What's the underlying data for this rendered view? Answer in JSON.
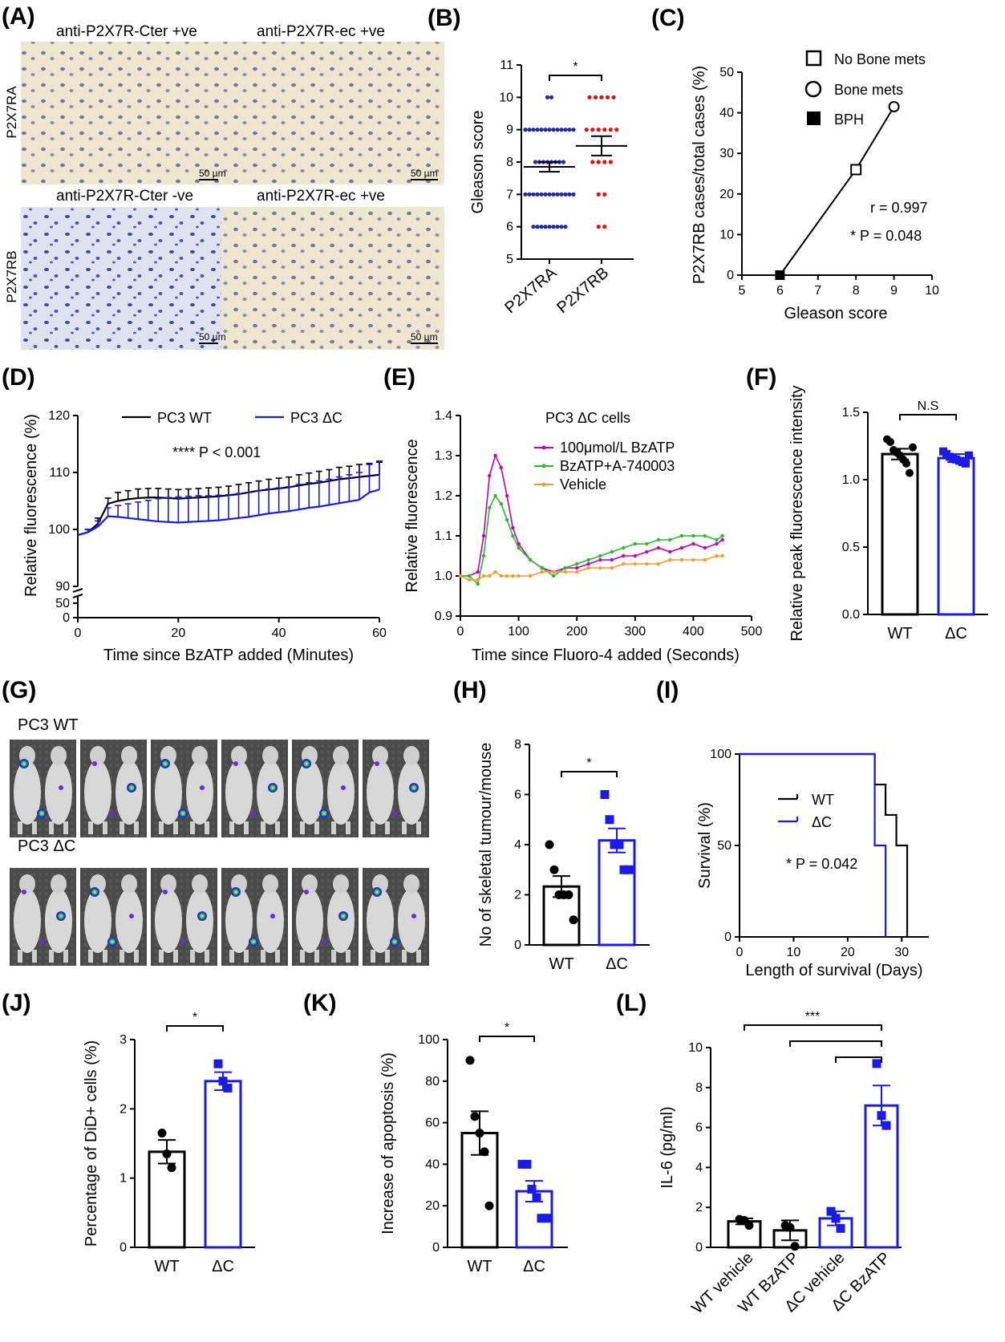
{
  "colors": {
    "black": "#000000",
    "blue": "#1a1aeb",
    "red": "#e01010",
    "navy": "#1f2a9e",
    "magenta": "#c000c0",
    "green": "#2db82d",
    "orange": "#f29b30"
  },
  "panels": {
    "A": {
      "tag": "(A)",
      "row_labels": [
        "P2X7RA",
        "P2X7RB"
      ],
      "tiles": [
        {
          "label": "anti-P2X7R-Cter +ve",
          "scale": "50 µm"
        },
        {
          "label": "anti-P2X7R-ec  +ve",
          "scale": "50 µm"
        },
        {
          "label": "anti-P2X7R-Cter  -ve",
          "scale": "50 µm"
        },
        {
          "label": "anti-P2X7R-ec +ve",
          "scale": "50 µm"
        }
      ]
    },
    "G": {
      "tag": "(G)",
      "group_labels": [
        "PC3 WT",
        "PC3 ΔC"
      ]
    }
  },
  "chart_data": [
    {
      "id": "B",
      "tag": "(B)",
      "type": "scatter",
      "categories": [
        "P2X7RA",
        "P2X7RB"
      ],
      "ylabel": "Gleason score",
      "ylim": [
        5,
        11
      ],
      "yticks": [
        5,
        6,
        7,
        8,
        9,
        10,
        11
      ],
      "series": [
        {
          "category": "P2X7RA",
          "mean": 7.85,
          "sem": 0.15,
          "counts": {
            "6": 9,
            "7": 13,
            "8": 8,
            "9": 13,
            "10": 2
          }
        },
        {
          "category": "P2X7RB",
          "mean": 8.5,
          "sem": 0.3,
          "counts": {
            "6": 2,
            "7": 2,
            "8": 4,
            "9": 6,
            "10": 5
          }
        }
      ],
      "significance": "*"
    },
    {
      "id": "C",
      "tag": "(C)",
      "type": "scatter",
      "xlabel": "Gleason score",
      "ylabel": "P2X7RB cases/total cases (%)",
      "xlim": [
        5,
        10
      ],
      "ylim": [
        0,
        50
      ],
      "xticks": [
        5,
        6,
        7,
        8,
        9,
        10
      ],
      "yticks": [
        0,
        10,
        20,
        30,
        40,
        50
      ],
      "points": [
        {
          "name": "BPH",
          "x": 6,
          "y": 0,
          "marker": "filled-square"
        },
        {
          "name": "No Bone mets",
          "x": 8,
          "y": 26,
          "marker": "open-square"
        },
        {
          "name": "Bone mets",
          "x": 9,
          "y": 41.5,
          "marker": "open-circle"
        }
      ],
      "legend": [
        "No Bone mets",
        "Bone mets",
        "BPH"
      ],
      "legend_position": "top-left",
      "annotations": [
        "r = 0.997",
        "* P = 0.048"
      ]
    },
    {
      "id": "D",
      "tag": "(D)",
      "type": "line",
      "xlabel": "Time since BzATP added (Minutes)",
      "ylabel": "Relative fluorescence (%)",
      "xlim": [
        0,
        60
      ],
      "xticks": [
        0,
        20,
        40,
        60
      ],
      "yticks_upper": [
        90,
        100,
        110,
        120
      ],
      "yticks_lower": [
        0,
        50
      ],
      "annotation": "**** P < 0.001",
      "series": [
        {
          "name": "PC3 WT",
          "x": [
            0,
            2,
            4,
            6,
            8,
            10,
            12,
            14,
            16,
            18,
            20,
            22,
            24,
            26,
            28,
            30,
            32,
            34,
            36,
            38,
            40,
            42,
            44,
            46,
            48,
            50,
            52,
            54,
            56,
            58,
            60
          ],
          "y": [
            99,
            99.5,
            101,
            104.5,
            105,
            105.3,
            105.5,
            105.6,
            105.6,
            105.5,
            105.4,
            105.5,
            105.6,
            105.7,
            105.8,
            106,
            106.2,
            106.5,
            106.8,
            107,
            107.2,
            107.4,
            107.7,
            108,
            108.2,
            108.5,
            108.8,
            109,
            109.2,
            109.4,
            109.6
          ],
          "err": [
            0.5,
            0.5,
            1,
            1,
            1.5,
            1.5,
            1.6,
            1.6,
            1.6,
            1.6,
            1.6,
            1.6,
            1.6,
            1.6,
            1.6,
            1.6,
            1.7,
            1.7,
            1.7,
            1.8,
            1.8,
            1.8,
            1.9,
            1.9,
            2,
            2,
            2.1,
            2.1,
            2.2,
            2.2,
            2.2
          ]
        },
        {
          "name": "PC3 ΔC",
          "x": [
            0,
            2,
            4,
            6,
            8,
            10,
            12,
            14,
            16,
            18,
            20,
            22,
            24,
            26,
            28,
            30,
            32,
            34,
            36,
            38,
            40,
            42,
            44,
            46,
            48,
            50,
            52,
            54,
            56,
            58,
            60
          ],
          "y": [
            99,
            99.5,
            100.5,
            102.3,
            102.2,
            102,
            101.8,
            101.6,
            101.4,
            101.3,
            101.2,
            101.3,
            101.4,
            101.5,
            101.6,
            101.8,
            102,
            102.2,
            102.5,
            102.8,
            103,
            103.2,
            103.5,
            103.8,
            104,
            104.3,
            104.6,
            104.9,
            105.2,
            106.5,
            107
          ],
          "err": [
            0.5,
            0.5,
            1,
            1.5,
            2,
            2.5,
            3,
            3.5,
            4,
            4.3,
            4.5,
            4.5,
            4.5,
            4.4,
            4.4,
            4.3,
            4.3,
            4.3,
            4.3,
            4.3,
            4.3,
            4.3,
            4.4,
            4.4,
            4.5,
            4.5,
            4.6,
            4.7,
            4.8,
            4.9,
            5
          ]
        }
      ]
    },
    {
      "id": "E",
      "tag": "(E)",
      "type": "line",
      "title": "PC3 ΔC cells",
      "xlabel": "Time since Fluoro-4 added (Seconds)",
      "ylabel": "Relative fluorescence",
      "xlim": [
        0,
        500
      ],
      "ylim": [
        0.9,
        1.4
      ],
      "xticks": [
        0,
        100,
        200,
        300,
        400,
        500
      ],
      "yticks": [
        0.9,
        1.0,
        1.1,
        1.2,
        1.3,
        1.4
      ],
      "series": [
        {
          "name": "100μmol/L BzATP",
          "x": [
            0,
            15,
            30,
            40,
            50,
            60,
            70,
            80,
            90,
            100,
            120,
            140,
            160,
            180,
            200,
            220,
            240,
            260,
            280,
            300,
            320,
            340,
            360,
            380,
            400,
            420,
            440,
            450
          ],
          "y": [
            1.0,
            1.0,
            1.01,
            1.1,
            1.25,
            1.3,
            1.27,
            1.2,
            1.12,
            1.08,
            1.04,
            1.02,
            1.01,
            1.02,
            1.02,
            1.03,
            1.04,
            1.04,
            1.05,
            1.05,
            1.06,
            1.07,
            1.06,
            1.07,
            1.08,
            1.07,
            1.08,
            1.09
          ]
        },
        {
          "name": "BzATP+A-740003",
          "x": [
            0,
            15,
            30,
            40,
            50,
            60,
            70,
            80,
            90,
            100,
            120,
            140,
            160,
            180,
            200,
            220,
            240,
            260,
            280,
            300,
            320,
            340,
            360,
            380,
            400,
            420,
            440,
            450
          ],
          "y": [
            1.0,
            1.0,
            0.98,
            1.05,
            1.17,
            1.2,
            1.18,
            1.14,
            1.1,
            1.07,
            1.04,
            1.02,
            1.0,
            1.02,
            1.03,
            1.04,
            1.05,
            1.06,
            1.07,
            1.08,
            1.08,
            1.09,
            1.09,
            1.1,
            1.1,
            1.1,
            1.09,
            1.1
          ]
        },
        {
          "name": "Vehicle",
          "x": [
            0,
            15,
            30,
            40,
            50,
            60,
            70,
            80,
            90,
            100,
            120,
            140,
            160,
            180,
            200,
            220,
            240,
            260,
            280,
            300,
            320,
            340,
            360,
            380,
            400,
            420,
            440,
            450
          ],
          "y": [
            1.0,
            0.99,
            0.99,
            1.0,
            1.0,
            1.01,
            1.0,
            1.0,
            1.0,
            1.0,
            1.0,
            1.01,
            1.01,
            1.01,
            1.01,
            1.02,
            1.02,
            1.02,
            1.03,
            1.03,
            1.03,
            1.03,
            1.04,
            1.04,
            1.04,
            1.04,
            1.05,
            1.05
          ]
        }
      ],
      "legend_position": "top-right"
    },
    {
      "id": "F",
      "tag": "(F)",
      "type": "bar",
      "categories": [
        "WT",
        "ΔC"
      ],
      "ylabel": "Relative peak fluorescence intensity",
      "ylim": [
        0,
        1.5
      ],
      "yticks": [
        0.0,
        0.5,
        1.0,
        1.5
      ],
      "values": [
        1.19,
        1.16
      ],
      "sem": [
        0.04,
        0.03
      ],
      "points": [
        [
          1.3,
          1.28,
          1.22,
          1.2,
          1.18,
          1.15,
          1.12,
          1.05,
          1.24
        ],
        [
          1.21,
          1.19,
          1.17,
          1.16,
          1.15,
          1.14,
          1.13,
          1.12,
          1.18
        ]
      ],
      "significance": "N.S"
    },
    {
      "id": "H",
      "tag": "(H)",
      "type": "bar",
      "categories": [
        "WT",
        "ΔC"
      ],
      "ylabel": "No of skeletal tumour/mouse",
      "ylim": [
        0,
        8
      ],
      "yticks": [
        0,
        2,
        4,
        6,
        8
      ],
      "values": [
        2.33,
        4.17
      ],
      "sem": [
        0.42,
        0.48
      ],
      "points": [
        [
          4,
          3,
          2,
          2,
          2,
          1
        ],
        [
          6,
          5,
          4,
          4,
          3,
          3
        ]
      ],
      "significance": "*"
    },
    {
      "id": "I",
      "tag": "(I)",
      "type": "line",
      "xlabel": "Length of survival (Days)",
      "ylabel": "Survival (%)",
      "xlim": [
        0,
        35
      ],
      "ylim": [
        0,
        100
      ],
      "xticks": [
        0,
        10,
        20,
        30
      ],
      "yticks": [
        0,
        50,
        100
      ],
      "annotation": "* P = 0.042",
      "series": [
        {
          "name": "WT",
          "x": [
            0,
            25,
            25,
            27,
            27,
            29,
            29,
            31,
            31
          ],
          "y": [
            100,
            100,
            83.3,
            83.3,
            66.7,
            66.7,
            50,
            50,
            0
          ]
        },
        {
          "name": "ΔC",
          "x": [
            0,
            25,
            25,
            27,
            27
          ],
          "y": [
            100,
            100,
            50,
            50,
            0
          ]
        }
      ]
    },
    {
      "id": "J",
      "tag": "(J)",
      "type": "bar",
      "categories": [
        "WT",
        "ΔC"
      ],
      "ylabel": "Percentage of DiD+ cells (%)",
      "ylim": [
        0,
        3
      ],
      "yticks": [
        0,
        1,
        2,
        3
      ],
      "values": [
        1.38,
        2.4
      ],
      "sem": [
        0.17,
        0.13
      ],
      "points": [
        [
          1.65,
          1.35,
          1.15
        ],
        [
          2.65,
          2.4,
          2.3
        ]
      ],
      "significance": "*"
    },
    {
      "id": "K",
      "tag": "(K)",
      "type": "bar",
      "categories": [
        "WT",
        "ΔC"
      ],
      "ylabel": "Increase of apoptosis (%)",
      "ylim": [
        0,
        100
      ],
      "yticks": [
        0,
        20,
        40,
        60,
        80,
        100
      ],
      "values": [
        55,
        27
      ],
      "sem": [
        10.5,
        5
      ],
      "points": [
        [
          90,
          63,
          55,
          46,
          20
        ],
        [
          40,
          40,
          28,
          24,
          14,
          14
        ]
      ],
      "significance": "*"
    },
    {
      "id": "L",
      "tag": "(L)",
      "type": "bar",
      "categories": [
        "WT vehicle",
        "WT BzATP",
        "ΔC vehicle",
        "ΔC BzATP"
      ],
      "ylabel": "IL-6 (pg/ml)",
      "ylim": [
        0,
        10
      ],
      "yticks": [
        0,
        2,
        4,
        6,
        8,
        10
      ],
      "values": [
        1.3,
        0.85,
        1.45,
        7.1
      ],
      "sem": [
        0.15,
        0.5,
        0.35,
        1.0
      ],
      "points": [
        [
          1.4,
          1.35,
          1.1
        ],
        [
          1.1,
          1.0,
          0.05
        ],
        [
          1.8,
          1.45,
          0.95
        ],
        [
          9.2,
          6.6,
          6.1
        ]
      ],
      "significance": "***"
    }
  ]
}
